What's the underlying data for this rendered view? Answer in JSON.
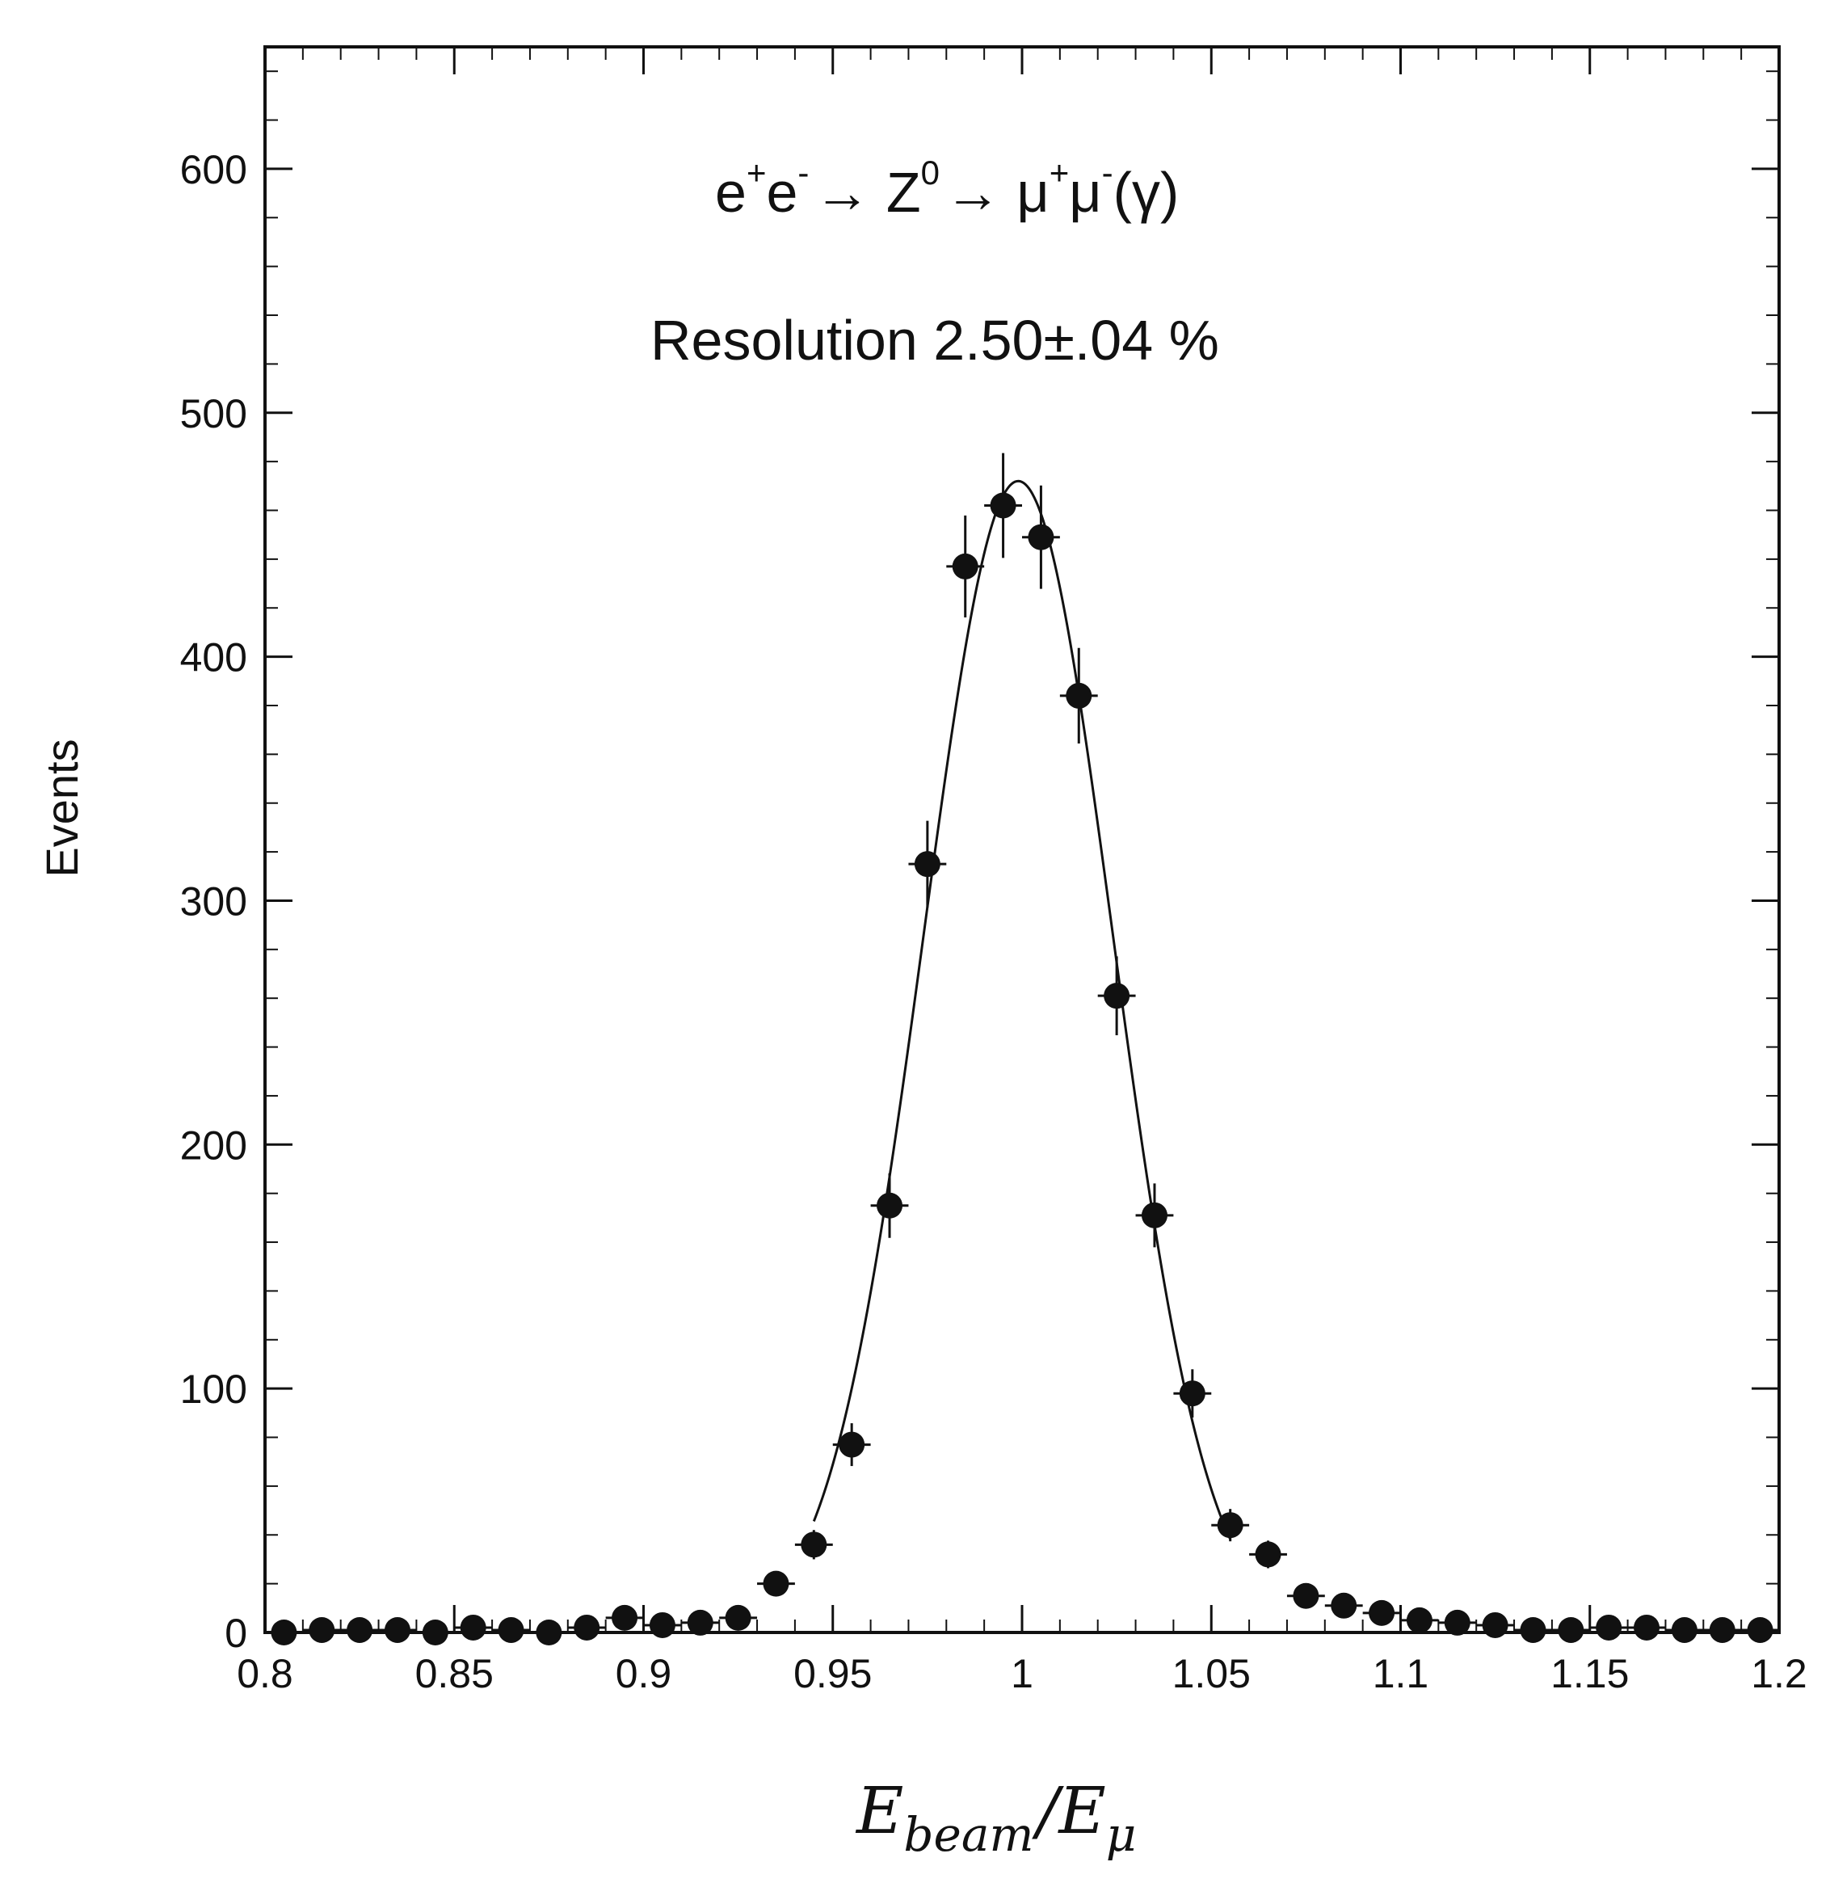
{
  "chart_data": {
    "type": "scatter",
    "title_parts": {
      "e1": "e",
      "e1_sup": "+",
      "e2": "e",
      "e2_sup": "-",
      "arrow1": "→ Z",
      "z_sup": "0",
      "arrow2": "→ μ",
      "mu1_sup": "+",
      "mu2": "μ",
      "mu2_sup": "-",
      "tail": "(γ)"
    },
    "subtitle": "Resolution 2.50±.04 %",
    "xlabel": {
      "E1": "E",
      "sub1": "beam",
      "slash": "/",
      "E2": "E",
      "sub2": "μ"
    },
    "ylabel": "Events",
    "xlim": [
      0.8,
      1.2
    ],
    "ylim": [
      0,
      650
    ],
    "x_ticks": [
      0.8,
      0.85,
      0.9,
      0.95,
      1.0,
      1.05,
      1.1,
      1.15,
      1.2
    ],
    "x_tick_labels": [
      "0.8",
      "0.85",
      "0.9",
      "0.95",
      "1",
      "1.05",
      "1.1",
      "1.15",
      "1.2"
    ],
    "y_ticks": [
      0,
      100,
      200,
      300,
      400,
      500,
      600
    ],
    "y_tick_labels": [
      "0",
      "100",
      "200",
      "300",
      "400",
      "500",
      "600"
    ],
    "series": [
      {
        "kind": "points_with_errors",
        "x": [
          0.805,
          0.815,
          0.825,
          0.835,
          0.845,
          0.855,
          0.865,
          0.875,
          0.885,
          0.895,
          0.905,
          0.915,
          0.925,
          0.935,
          0.945,
          0.955,
          0.965,
          0.975,
          0.985,
          0.995,
          1.005,
          1.015,
          1.025,
          1.035,
          1.045,
          1.055,
          1.065,
          1.075,
          1.085,
          1.095,
          1.105,
          1.115,
          1.125,
          1.135,
          1.145,
          1.155,
          1.165,
          1.175,
          1.185,
          1.195
        ],
        "y": [
          0,
          1,
          1,
          1,
          0,
          2,
          1,
          0,
          2,
          6,
          3,
          4,
          6,
          20,
          36,
          77,
          175,
          315,
          437,
          462,
          449,
          384,
          261,
          171,
          98,
          44,
          32,
          15,
          11,
          8,
          5,
          4,
          3,
          1,
          1,
          2,
          2,
          1,
          1,
          1
        ]
      },
      {
        "kind": "fit_curve",
        "mean": 0.999,
        "resolution": 0.025,
        "amplitude": 472,
        "x_range": [
          0.945,
          1.055
        ]
      }
    ],
    "grid": false,
    "legend": "none",
    "colors": {
      "ink": "#111111",
      "background": "#ffffff"
    }
  }
}
